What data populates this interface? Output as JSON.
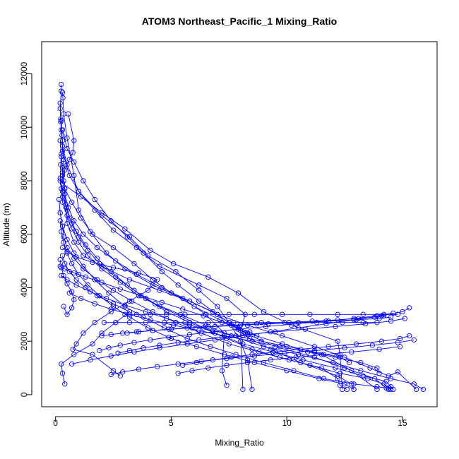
{
  "chart_data": {
    "type": "line",
    "title": "ATOM3 Northeast_Pacific_1 Mixing_Ratio",
    "xlabel": "Mixing_Ratio",
    "ylabel": "Altitude (m)",
    "xlim": [
      -0.6,
      16.5
    ],
    "ylim": [
      -450,
      13200
    ],
    "xticks": [
      0,
      5,
      10,
      15
    ],
    "yticks": [
      0,
      2000,
      4000,
      6000,
      8000,
      10000,
      12000
    ],
    "grid": false,
    "legend": "none",
    "marker": "open-circle",
    "colors": {
      "series": "#0000ff",
      "axis": "#000000"
    },
    "series": [
      {
        "x": [
          0.25,
          0.25,
          0.2,
          0.22,
          0.3,
          0.35,
          0.3,
          0.4,
          0.45,
          0.5,
          0.8,
          1.2,
          2.0,
          3.2,
          4.5,
          5.8,
          6.8,
          7.5,
          8.2,
          9.5,
          11.2,
          12.5,
          13.8,
          14.4
        ],
        "y": [
          11600,
          11350,
          10700,
          10200,
          9500,
          8800,
          8200,
          7700,
          7000,
          6400,
          5700,
          5200,
          4800,
          4300,
          3900,
          3500,
          3100,
          2700,
          2300,
          1800,
          1400,
          1000,
          600,
          200
        ]
      },
      {
        "x": [
          0.3,
          0.32,
          0.35,
          0.5,
          0.8,
          1.0,
          1.5,
          2.2,
          3.0,
          4.2,
          5.5,
          6.5,
          7.3,
          7.2,
          7.4
        ],
        "y": [
          11300,
          11100,
          10500,
          9600,
          8200,
          6900,
          6100,
          5300,
          4700,
          4100,
          3600,
          3000,
          2300,
          900,
          350
        ]
      },
      {
        "x": [
          0.2,
          0.22,
          0.25,
          0.3,
          0.5,
          1.0,
          2.0,
          3.2,
          4.0,
          5.2,
          6.2,
          7.0,
          7.5,
          8.0,
          8.3,
          8.5
        ],
        "y": [
          10900,
          10300,
          9900,
          9300,
          8600,
          7600,
          6700,
          5900,
          5200,
          4600,
          3900,
          3300,
          2700,
          2000,
          1300,
          200
        ]
      },
      {
        "x": [
          0.25,
          0.28,
          0.3,
          0.6,
          1.0,
          1.7,
          2.5,
          3.5,
          4.5,
          6.2,
          7.4,
          8.2,
          8.0,
          8.1
        ],
        "y": [
          10250,
          9700,
          9100,
          8200,
          7600,
          6900,
          6150,
          5500,
          4800,
          4100,
          3600,
          3000,
          2400,
          200
        ]
      },
      {
        "x": [
          0.55,
          0.8,
          0.75,
          0.6,
          0.4,
          0.3,
          1.1,
          2.0,
          3.0,
          4.1,
          5.1,
          6.6,
          7.9,
          9.0,
          10.2,
          12.2,
          12.3,
          12.4
        ],
        "y": [
          10500,
          9500,
          9050,
          8800,
          8400,
          7900,
          7400,
          6800,
          6200,
          5400,
          4900,
          4400,
          3800,
          3100,
          2600,
          2000,
          1500,
          200
        ]
      },
      {
        "x": [
          0.3,
          0.5,
          0.8,
          1.2,
          1.7,
          2.4,
          3.1,
          3.8,
          4.6,
          5.3,
          6.2,
          7.0,
          7.8,
          8.4,
          9.3,
          10.6,
          12.2,
          12.8,
          12.9
        ],
        "y": [
          9900,
          9200,
          8700,
          8000,
          7300,
          6500,
          5900,
          5300,
          4600,
          4100,
          3500,
          3000,
          2500,
          2100,
          1700,
          1200,
          700,
          400,
          200
        ]
      },
      {
        "x": [
          0.2,
          0.25,
          0.3,
          0.4,
          0.7,
          1.1,
          1.6,
          2.5,
          3.4,
          4.2,
          5.0,
          6.0,
          7.1,
          8.3,
          9.8,
          11.5,
          12.8,
          13.9
        ],
        "y": [
          9500,
          8900,
          8300,
          7700,
          7200,
          6600,
          6000,
          5500,
          4900,
          4300,
          3800,
          3300,
          2800,
          2300,
          1900,
          1500,
          900,
          200
        ]
      },
      {
        "x": [
          0.25,
          0.22,
          0.2,
          0.3,
          0.5,
          0.7,
          1.0,
          1.4,
          1.9,
          2.6,
          3.4,
          4.3,
          5.4,
          6.5,
          7.6,
          9.0,
          10.5,
          12.0,
          13.2,
          14.5,
          15.5,
          15.9
        ],
        "y": [
          9000,
          8600,
          8000,
          7400,
          6900,
          6400,
          5900,
          5400,
          4900,
          4400,
          3900,
          3400,
          3000,
          2600,
          2200,
          1800,
          1500,
          1200,
          900,
          600,
          400,
          200
        ]
      },
      {
        "x": [
          0.3,
          0.35,
          0.4,
          0.55,
          0.8,
          1.2,
          1.8,
          2.6,
          3.5,
          4.6,
          5.8,
          7.0,
          8.3,
          9.8,
          11.2,
          12.5,
          13.6,
          14.4,
          14.8,
          15.6
        ],
        "y": [
          8500,
          8000,
          7500,
          7000,
          6500,
          6000,
          5500,
          5000,
          4500,
          4000,
          3500,
          3000,
          2600,
          2200,
          1800,
          1400,
          1000,
          700,
          850,
          200
        ]
      },
      {
        "x": [
          0.2,
          0.3,
          0.45,
          0.6,
          0.9,
          1.3,
          1.8,
          2.4,
          3.1,
          3.9,
          4.8,
          5.8,
          6.9,
          8.1,
          9.4,
          10.7,
          12.1,
          13.3,
          14.3,
          14.5,
          14.6
        ],
        "y": [
          8100,
          7600,
          7100,
          6600,
          6100,
          5600,
          5100,
          4600,
          4100,
          3600,
          3100,
          2700,
          2300,
          1900,
          1600,
          1300,
          1000,
          700,
          500,
          300,
          200
        ]
      },
      {
        "x": [
          0.25,
          0.3,
          0.5,
          0.7,
          1.0,
          1.4,
          2.0,
          2.8,
          3.6,
          4.5,
          5.5,
          6.4,
          7.4,
          8.5,
          9.7,
          11.0,
          12.3,
          13.5,
          14.2,
          14.4,
          14.5
        ],
        "y": [
          7700,
          7200,
          6700,
          6200,
          5700,
          5200,
          4700,
          4200,
          3700,
          3300,
          2900,
          2500,
          2100,
          1700,
          1400,
          1100,
          800,
          600,
          400,
          250,
          200
        ]
      },
      {
        "x": [
          0.15,
          0.2,
          0.3,
          0.5,
          0.8,
          1.2,
          1.7,
          2.3,
          3.0,
          3.8,
          4.7,
          5.7,
          6.7,
          7.8,
          9.0,
          10.3,
          11.6,
          12.9,
          13.9,
          14.3
        ],
        "y": [
          7300,
          6800,
          6300,
          5800,
          5300,
          4800,
          4300,
          3800,
          3300,
          2900,
          2500,
          2100,
          1800,
          1500,
          1200,
          900,
          600,
          400,
          300,
          250
        ]
      },
      {
        "x": [
          0.2,
          0.3,
          0.35,
          0.5,
          0.8,
          1.2,
          1.8,
          2.5,
          3.3,
          4.2,
          5.2,
          6.3,
          7.5,
          8.8,
          10.1,
          11.5,
          12.2,
          12.3,
          12.6
        ],
        "y": [
          6800,
          6300,
          5900,
          5500,
          5100,
          4700,
          4300,
          3900,
          3500,
          3100,
          2700,
          2300,
          1900,
          1600,
          1300,
          1000,
          600,
          350,
          200
        ]
      },
      {
        "x": [
          0.2,
          0.25,
          0.35,
          0.5,
          0.7,
          1.0,
          1.4,
          1.9,
          2.5,
          3.2,
          4.0,
          5.0,
          6.1,
          7.3,
          8.6,
          10.0,
          11.4,
          12.5,
          12.9
        ],
        "y": [
          6500,
          6100,
          5700,
          5300,
          4900,
          4500,
          4100,
          3700,
          3300,
          2900,
          2500,
          2100,
          1800,
          1500,
          1200,
          900,
          600,
          400,
          200
        ]
      },
      {
        "x": [
          0.3,
          0.5,
          0.9,
          1.6,
          2.5,
          3.6,
          4.4,
          4.0,
          3.2,
          2.4,
          1.7,
          1.2,
          0.9,
          0.75,
          1.6,
          2.5,
          2.8
        ],
        "y": [
          5500,
          5350,
          5150,
          4950,
          4750,
          4550,
          4300,
          3900,
          3500,
          3100,
          2700,
          2300,
          1900,
          1700,
          1500,
          900,
          700
        ]
      },
      {
        "x": [
          0.3,
          0.4,
          0.6,
          0.9,
          1.3,
          1.8,
          2.5,
          3.2,
          2.6,
          2.0,
          1.6,
          0.8,
          0.25,
          0.3,
          0.4
        ],
        "y": [
          5200,
          4900,
          4600,
          4300,
          4000,
          3700,
          3400,
          3100,
          2700,
          2300,
          1900,
          1500,
          1150,
          800,
          400
        ]
      },
      {
        "x": [
          0.2,
          0.25,
          0.35,
          0.5,
          0.7,
          0.8,
          0.7,
          0.5,
          0.35
        ],
        "y": [
          5050,
          4750,
          4450,
          4150,
          3850,
          3550,
          3250,
          3000,
          3300
        ]
      },
      {
        "x": [
          0.2,
          0.4,
          0.8,
          1.3,
          2.0,
          2.8,
          3.7,
          4.6,
          5.5,
          6.4,
          7.2,
          7.9,
          8.4,
          8.7
        ],
        "y": [
          4800,
          4700,
          4550,
          4400,
          4200,
          3950,
          3700,
          3450,
          3200,
          2950,
          2700,
          2500,
          2350,
          2200
        ]
      },
      {
        "x": [
          0.25,
          0.5,
          0.9,
          1.5,
          2.2,
          3.0,
          3.9,
          4.8,
          5.8,
          6.8,
          7.8,
          8.9,
          10.0,
          11.2,
          12.3,
          12.7
        ],
        "y": [
          4450,
          4300,
          4100,
          3850,
          3600,
          3350,
          3100,
          2850,
          2600,
          2400,
          2200,
          2000,
          1800,
          1600,
          1400,
          1200
        ]
      },
      {
        "x": [
          0.6,
          1.1,
          1.7,
          2.4,
          3.2,
          4.1,
          5.1,
          6.2,
          7.3,
          8.5,
          9.7,
          10.9,
          12.1,
          13.2,
          13.9,
          14.0
        ],
        "y": [
          3800,
          3600,
          3400,
          3200,
          3000,
          2800,
          2600,
          2400,
          2200,
          2000,
          1800,
          1600,
          1400,
          1200,
          1000,
          800
        ]
      },
      {
        "x": [
          0.7,
          1.5,
          2.4,
          3.4,
          4.5,
          5.7,
          6.9,
          8.1,
          9.3,
          10.5,
          11.7,
          12.9,
          14.1,
          15.0,
          15.3
        ],
        "y": [
          1150,
          1300,
          1450,
          1600,
          1750,
          1900,
          2050,
          2200,
          2350,
          2500,
          2650,
          2800,
          2950,
          3100,
          3250
        ]
      },
      {
        "x": [
          2.4,
          2.9,
          3.6,
          4.4,
          5.3,
          6.3,
          7.4,
          8.6,
          9.9,
          11.2,
          12.5,
          13.7,
          14.8,
          15.5
        ],
        "y": [
          750,
          850,
          950,
          1050,
          1150,
          1250,
          1350,
          1450,
          1550,
          1650,
          1750,
          1850,
          1950,
          2050
        ]
      },
      {
        "x": [
          5.3,
          5.9,
          6.6,
          7.4,
          8.3,
          9.3,
          10.4,
          11.6,
          12.8,
          14.0,
          14.9
        ],
        "y": [
          800,
          900,
          1000,
          1100,
          1200,
          1300,
          1400,
          1500,
          1600,
          1700,
          1800
        ]
      },
      {
        "x": [
          2.7,
          3.2,
          3.8,
          4.5,
          5.3,
          6.2,
          7.2,
          8.3,
          9.5,
          10.8,
          12.1,
          13.4,
          14.5,
          15.1
        ],
        "y": [
          1550,
          1650,
          1750,
          1850,
          1950,
          2050,
          2150,
          2250,
          2350,
          2450,
          2550,
          2650,
          2750,
          2850
        ]
      },
      {
        "x": [
          1.9,
          2.3,
          2.8,
          3.4,
          4.1,
          4.9,
          5.8,
          6.8,
          7.9,
          9.1,
          10.4,
          11.7,
          12.9,
          13.9,
          14.6
        ],
        "y": [
          1650,
          1750,
          1850,
          1950,
          2050,
          2150,
          2250,
          2350,
          2450,
          2550,
          2650,
          2750,
          2850,
          2950,
          3050
        ]
      },
      {
        "x": [
          5.5,
          6.1,
          6.8,
          7.6,
          8.5,
          9.5,
          10.6,
          11.8,
          13.0,
          14.1,
          14.9,
          15.3
        ],
        "y": [
          1100,
          1200,
          1300,
          1400,
          1500,
          1600,
          1700,
          1800,
          1900,
          2000,
          2100,
          2200
        ]
      },
      {
        "x": [
          2.0,
          2.4,
          2.9,
          3.5,
          4.2,
          5.0,
          5.9,
          6.9,
          8.0,
          9.2,
          10.5,
          11.8,
          13.0,
          14.0,
          14.5
        ],
        "y": [
          2200,
          2250,
          2300,
          2350,
          2400,
          2450,
          2500,
          2550,
          2600,
          2650,
          2700,
          2750,
          2800,
          2850,
          2900
        ]
      },
      {
        "x": [
          3.1,
          3.6,
          4.2,
          4.9,
          5.7,
          6.6,
          7.6,
          8.7,
          9.9,
          11.1,
          12.2,
          13.1,
          13.8,
          14.2
        ],
        "y": [
          2300,
          2350,
          2400,
          2450,
          2500,
          2550,
          2600,
          2650,
          2700,
          2750,
          2800,
          2850,
          2900,
          2950
        ]
      },
      {
        "x": [
          3.0,
          3.5,
          4.1,
          4.8,
          5.6,
          6.5,
          7.5,
          8.6,
          9.8,
          11.0,
          12.2,
          13.3,
          14.2,
          14.8
        ],
        "y": [
          3000,
          3000,
          3000,
          3000,
          3000,
          3000,
          3000,
          3000,
          3000,
          3000,
          3000,
          3000,
          3000,
          3000
        ]
      },
      {
        "x": [
          2.1,
          2.6,
          3.2,
          3.9,
          4.7,
          5.6,
          6.6,
          7.7,
          8.9,
          10.1,
          11.3,
          12.4,
          13.3,
          13.9
        ],
        "y": [
          2700,
          2700,
          2700,
          2700,
          2700,
          2700,
          2700,
          2700,
          2700,
          2700,
          2700,
          2700,
          2700,
          2700
        ]
      }
    ]
  }
}
